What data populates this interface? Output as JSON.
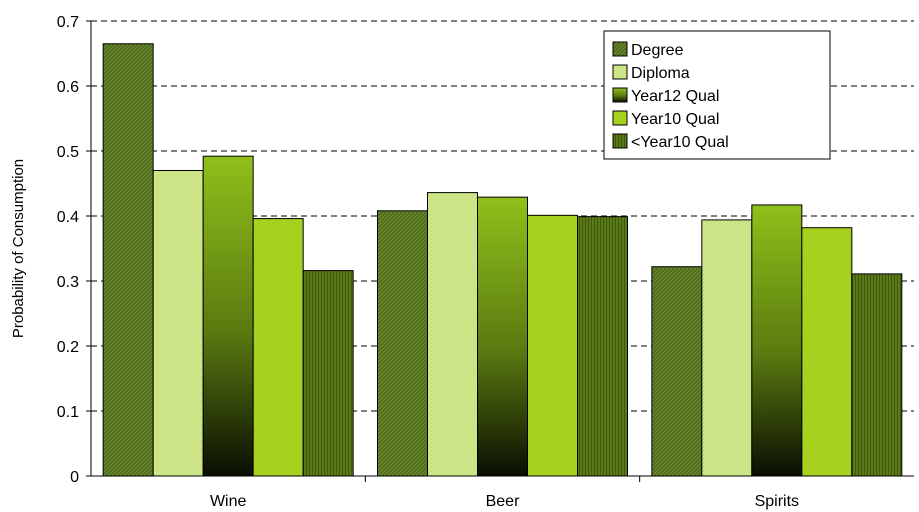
{
  "chart_data": {
    "type": "bar",
    "ylabel": "Probability of Consumption",
    "xlabel": "",
    "title": "",
    "ylim": [
      0,
      0.7
    ],
    "yticks": [
      0,
      0.1,
      0.2,
      0.3,
      0.4,
      0.5,
      0.6,
      0.7
    ],
    "ytick_labels": [
      "0",
      "0.1",
      "0.2",
      "0.3",
      "0.4",
      "0.5",
      "0.6",
      "0.7"
    ],
    "grid": "horizontal dashed",
    "legend_position": "top-right",
    "categories": [
      "Wine",
      "Beer",
      "Spirits"
    ],
    "series": [
      {
        "name": "Degree",
        "values": [
          0.665,
          0.408,
          0.322
        ],
        "color": "#4f6b1c",
        "pattern": "hatch-dark"
      },
      {
        "name": "Diploma",
        "values": [
          0.47,
          0.436,
          0.394
        ],
        "color": "#c6e07a",
        "pattern": "hatch-light"
      },
      {
        "name": "Year12 Qual",
        "values": [
          0.492,
          0.429,
          0.417
        ],
        "color": "#8fc01a",
        "pattern": "gradient"
      },
      {
        "name": "Year10 Qual",
        "values": [
          0.396,
          0.401,
          0.382
        ],
        "color": "#a6d11e",
        "pattern": "solid"
      },
      {
        "name": "<Year10 Qual",
        "values": [
          0.316,
          0.399,
          0.311
        ],
        "color": "#5a7a16",
        "pattern": "vertical-stripes"
      }
    ]
  }
}
